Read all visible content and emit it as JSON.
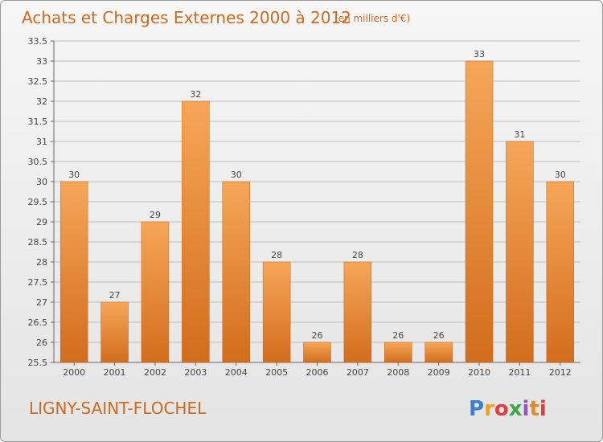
{
  "chart_data": {
    "type": "bar",
    "title": "Achats et Charges Externes 2000 à 2012",
    "subtitle": "(en milliers d'€)",
    "categories": [
      "2000",
      "2001",
      "2002",
      "2003",
      "2004",
      "2005",
      "2006",
      "2007",
      "2008",
      "2009",
      "2010",
      "2011",
      "2012"
    ],
    "values": [
      30,
      27,
      29,
      32,
      30,
      28,
      26,
      28,
      26,
      26,
      33,
      31,
      30
    ],
    "ylim": [
      25.5,
      33.5
    ],
    "yticks": [
      "25.5",
      "26",
      "26.5",
      "27",
      "27.5",
      "28",
      "28.5",
      "29",
      "29.5",
      "30",
      "30.5",
      "31",
      "31.5",
      "32",
      "32.5",
      "33",
      "33.5"
    ],
    "grid": true,
    "bar_color": "#f0923a",
    "bar_color_dark": "#d9731f"
  },
  "footer": {
    "commune": "LIGNY-SAINT-FLOCHEL",
    "logo": "Proxiti",
    "logo_colors": [
      "#3a7fd0",
      "#f0a020",
      "#e03c3c",
      "#3aa84a",
      "#9b4fc4",
      "#e08a20",
      "#e03c3c"
    ]
  }
}
